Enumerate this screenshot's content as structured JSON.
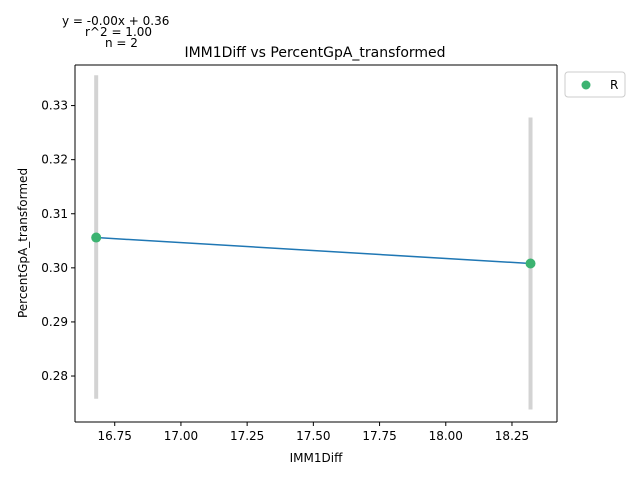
{
  "chart_data": {
    "type": "scatter",
    "title": "IMM1Diff vs PercentGpA_transformed",
    "xlabel": "IMM1Diff",
    "ylabel": "PercentGpA_transformed",
    "xlim": [
      16.6,
      18.42
    ],
    "ylim": [
      0.2715,
      0.3375
    ],
    "xticks": [
      16.75,
      17.0,
      17.25,
      17.5,
      17.75,
      18.0,
      18.25
    ],
    "xtick_labels": [
      "16.75",
      "17.00",
      "17.25",
      "17.50",
      "17.75",
      "18.00",
      "18.25"
    ],
    "yticks": [
      0.28,
      0.29,
      0.3,
      0.31,
      0.32,
      0.33
    ],
    "ytick_labels": [
      "0.28",
      "0.29",
      "0.30",
      "0.31",
      "0.32",
      "0.33"
    ],
    "grid": false,
    "legend_position": "outside-top-right",
    "series": [
      {
        "name": "R",
        "color": "#3cb371",
        "points": [
          {
            "x": 16.68,
            "y": 0.3056,
            "err_low": 0.2758,
            "err_high": 0.3356
          },
          {
            "x": 18.32,
            "y": 0.3008,
            "err_low": 0.2738,
            "err_high": 0.3278
          }
        ]
      }
    ],
    "fit_line": {
      "color": "#1f77b4",
      "x": [
        16.68,
        18.32
      ],
      "y": [
        0.3056,
        0.3008
      ]
    },
    "errorbar_color": "#d3d3d3",
    "annotations": {
      "equation": "y = -0.00x + 0.36",
      "r_squared": "r^2 = 1.00",
      "n": "n = 2"
    }
  }
}
